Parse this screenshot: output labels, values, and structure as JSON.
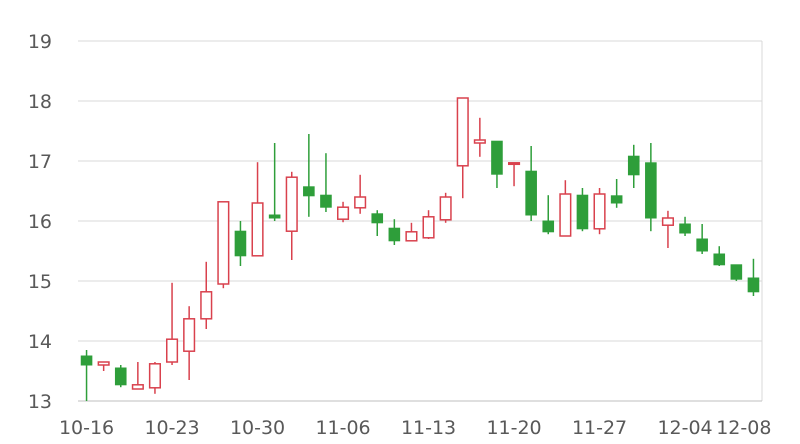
{
  "chart_data": {
    "type": "candlestick",
    "title": "",
    "xlabel": "",
    "ylabel": "",
    "ylim": [
      13,
      19
    ],
    "yticks": [
      13,
      14,
      15,
      16,
      17,
      18,
      19
    ],
    "grid": true,
    "up_color": "#d9414d",
    "down_color": "#2e9e3a",
    "axis_color": "#bfbfbf",
    "grid_color": "#d9d9d9",
    "x_tick_labels": [
      "10-16",
      "10-23",
      "10-30",
      "11-06",
      "11-13",
      "11-20",
      "11-27",
      "12-04",
      "12-08"
    ],
    "candles": [
      {
        "date": "10-16",
        "open": 13.75,
        "close": 13.6,
        "high": 13.85,
        "low": 13.0
      },
      {
        "date": "10-17",
        "open": 13.6,
        "close": 13.65,
        "high": 13.65,
        "low": 13.5
      },
      {
        "date": "10-18",
        "open": 13.55,
        "close": 13.27,
        "high": 13.6,
        "low": 13.23
      },
      {
        "date": "10-19",
        "open": 13.2,
        "close": 13.27,
        "high": 13.65,
        "low": 13.2
      },
      {
        "date": "10-20",
        "open": 13.22,
        "close": 13.62,
        "high": 13.65,
        "low": 13.12
      },
      {
        "date": "10-23",
        "open": 13.65,
        "close": 14.03,
        "high": 14.97,
        "low": 13.6
      },
      {
        "date": "10-24",
        "open": 13.83,
        "close": 14.37,
        "high": 14.58,
        "low": 13.35
      },
      {
        "date": "10-25",
        "open": 14.37,
        "close": 14.82,
        "high": 15.32,
        "low": 14.2
      },
      {
        "date": "10-26",
        "open": 14.95,
        "close": 16.32,
        "high": 16.32,
        "low": 14.88
      },
      {
        "date": "10-27",
        "open": 15.83,
        "close": 15.42,
        "high": 16.0,
        "low": 15.25
      },
      {
        "date": "10-30",
        "open": 15.42,
        "close": 16.3,
        "high": 16.98,
        "low": 15.42
      },
      {
        "date": "10-31",
        "open": 16.1,
        "close": 16.05,
        "high": 17.3,
        "low": 16.0
      },
      {
        "date": "11-01",
        "open": 15.83,
        "close": 16.73,
        "high": 16.82,
        "low": 15.35
      },
      {
        "date": "11-02",
        "open": 16.57,
        "close": 16.42,
        "high": 17.45,
        "low": 16.07
      },
      {
        "date": "11-03",
        "open": 16.43,
        "close": 16.23,
        "high": 17.13,
        "low": 16.15
      },
      {
        "date": "11-06",
        "open": 16.03,
        "close": 16.23,
        "high": 16.32,
        "low": 15.98
      },
      {
        "date": "11-07",
        "open": 16.22,
        "close": 16.4,
        "high": 16.77,
        "low": 16.12
      },
      {
        "date": "11-08",
        "open": 16.12,
        "close": 15.97,
        "high": 16.18,
        "low": 15.75
      },
      {
        "date": "11-09",
        "open": 15.88,
        "close": 15.67,
        "high": 16.03,
        "low": 15.6
      },
      {
        "date": "11-10",
        "open": 15.67,
        "close": 15.82,
        "high": 15.97,
        "low": 15.67
      },
      {
        "date": "11-13",
        "open": 15.72,
        "close": 16.07,
        "high": 16.18,
        "low": 15.7
      },
      {
        "date": "11-14",
        "open": 16.02,
        "close": 16.4,
        "high": 16.47,
        "low": 15.97
      },
      {
        "date": "11-15",
        "open": 16.92,
        "close": 18.05,
        "high": 18.05,
        "low": 16.38
      },
      {
        "date": "11-16",
        "open": 17.3,
        "close": 17.35,
        "high": 17.72,
        "low": 17.07
      },
      {
        "date": "11-17",
        "open": 17.33,
        "close": 16.78,
        "high": 17.33,
        "low": 16.55
      },
      {
        "date": "11-20",
        "open": 16.95,
        "close": 16.97,
        "high": 16.97,
        "low": 16.58
      },
      {
        "date": "11-21",
        "open": 16.83,
        "close": 16.1,
        "high": 17.25,
        "low": 16.0
      },
      {
        "date": "11-22",
        "open": 16.0,
        "close": 15.82,
        "high": 16.43,
        "low": 15.78
      },
      {
        "date": "11-23",
        "open": 15.75,
        "close": 16.45,
        "high": 16.68,
        "low": 15.75
      },
      {
        "date": "11-24",
        "open": 16.43,
        "close": 15.87,
        "high": 16.55,
        "low": 15.83
      },
      {
        "date": "11-27",
        "open": 15.87,
        "close": 16.45,
        "high": 16.55,
        "low": 15.78
      },
      {
        "date": "11-28",
        "open": 16.42,
        "close": 16.3,
        "high": 16.7,
        "low": 16.22
      },
      {
        "date": "11-29",
        "open": 17.08,
        "close": 16.77,
        "high": 17.27,
        "low": 16.55
      },
      {
        "date": "11-30",
        "open": 16.97,
        "close": 16.05,
        "high": 17.3,
        "low": 15.83
      },
      {
        "date": "12-01",
        "open": 15.93,
        "close": 16.05,
        "high": 16.17,
        "low": 15.55
      },
      {
        "date": "12-04",
        "open": 15.95,
        "close": 15.8,
        "high": 16.07,
        "low": 15.75
      },
      {
        "date": "12-05",
        "open": 15.7,
        "close": 15.5,
        "high": 15.95,
        "low": 15.45
      },
      {
        "date": "12-06",
        "open": 15.45,
        "close": 15.27,
        "high": 15.58,
        "low": 15.25
      },
      {
        "date": "12-07",
        "open": 15.27,
        "close": 15.03,
        "high": 15.27,
        "low": 15.0
      },
      {
        "date": "12-08",
        "open": 15.05,
        "close": 14.82,
        "high": 15.37,
        "low": 14.75
      }
    ]
  }
}
